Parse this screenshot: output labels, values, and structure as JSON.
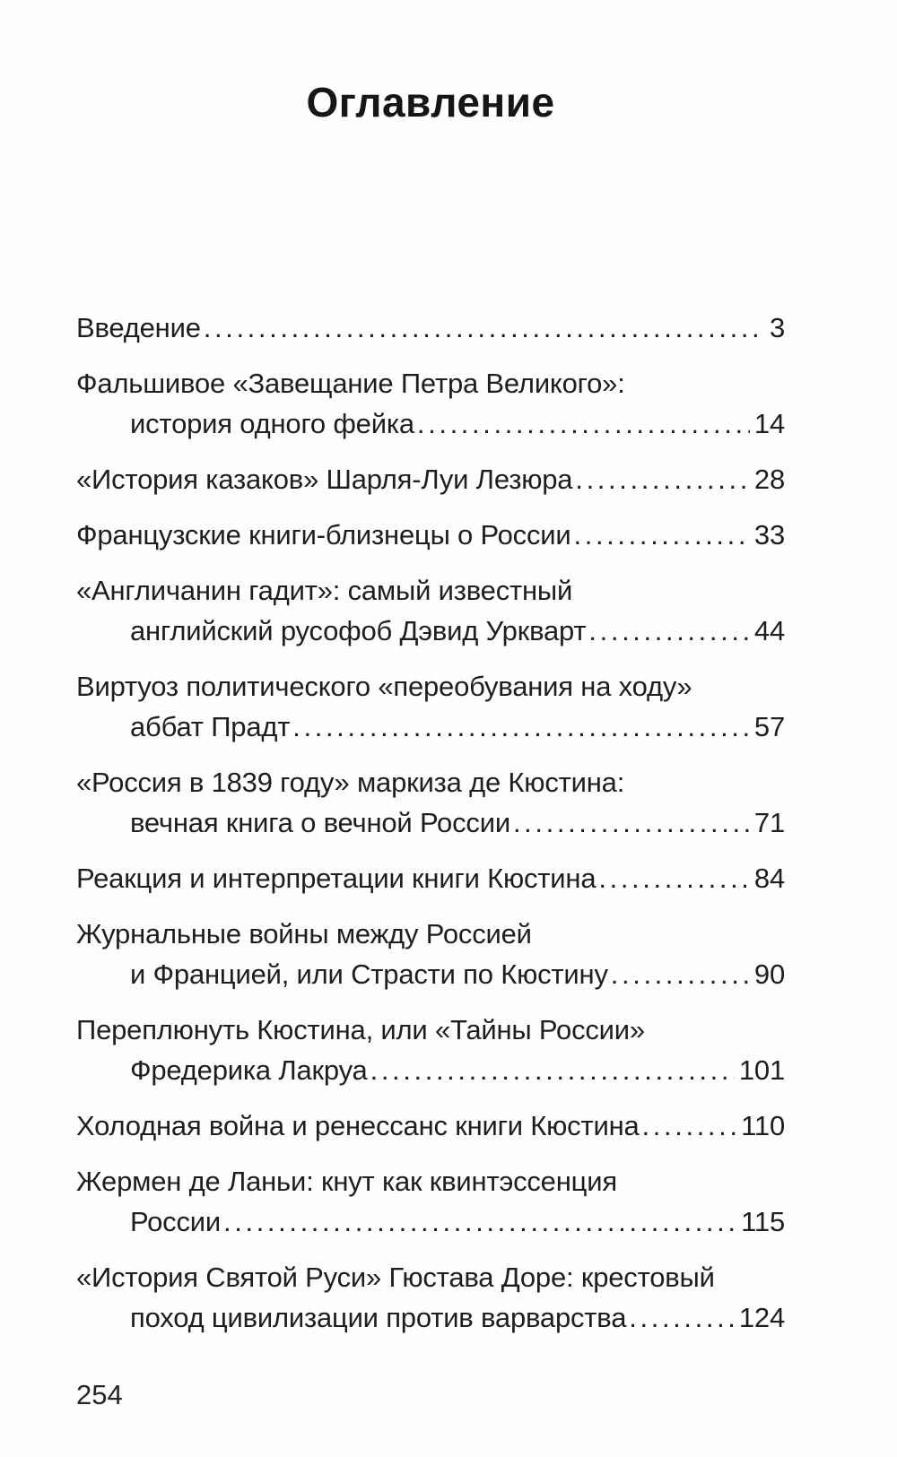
{
  "page": {
    "title": "Оглавление",
    "folio": "254"
  },
  "toc": {
    "entries": [
      {
        "lines": [
          "Введение"
        ],
        "page": "3"
      },
      {
        "lines": [
          "Фальшивое «Завещание Петра Великого»:",
          "история одного фейка"
        ],
        "page": "14"
      },
      {
        "lines": [
          "«История казаков» Шарля-Луи Лезюра"
        ],
        "page": "28"
      },
      {
        "lines": [
          "Французские книги-близнецы о России"
        ],
        "page": "33"
      },
      {
        "lines": [
          "«Англичанин гадит»: самый известный",
          "английский русофоб Дэвид Уркварт"
        ],
        "page": "44"
      },
      {
        "lines": [
          "Виртуоз политического «переобувания на ходу»",
          "аббат Прадт"
        ],
        "page": "57"
      },
      {
        "lines": [
          "«Россия в 1839 году» маркиза де Кюстина:",
          "вечная книга о вечной России"
        ],
        "page": "71"
      },
      {
        "lines": [
          "Реакция и интерпретации книги Кюстина"
        ],
        "page": "84"
      },
      {
        "lines": [
          "Журнальные войны между Россией",
          "и Францией, или Страсти по Кюстину"
        ],
        "page": "90"
      },
      {
        "lines": [
          "Переплюнуть Кюстина, или «Тайны России»",
          "Фредерика Лакруа"
        ],
        "page": "101"
      },
      {
        "lines": [
          "Холодная война и ренессанс книги Кюстина"
        ],
        "page": "110"
      },
      {
        "lines": [
          "Жермен де Ланьи: кнут как квинтэссенция",
          "России"
        ],
        "page": "115"
      },
      {
        "lines": [
          "«История Святой Руси» Гюстава Доре: крестовый",
          "поход цивилизации против варварства"
        ],
        "page": "124"
      }
    ]
  }
}
